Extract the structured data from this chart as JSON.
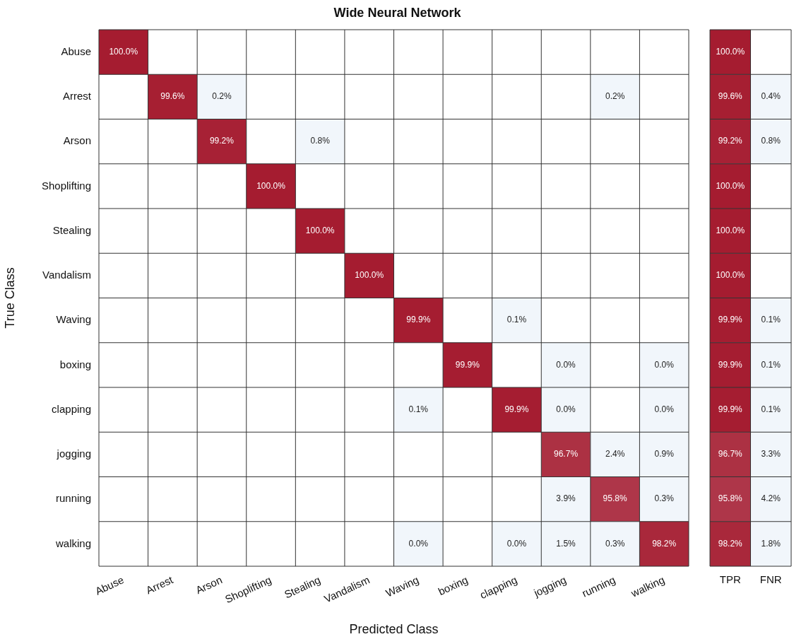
{
  "chart_data": [
    {
      "type": "heatmap",
      "title": "Wide Neural Network",
      "xlabel": "Predicted Class",
      "ylabel": "True Class",
      "data_labels": true,
      "categories": [
        "Abuse",
        "Arrest",
        "Arson",
        "Shoplifting",
        "Stealing",
        "Vandalism",
        "Waving",
        "boxing",
        "clapping",
        "jogging",
        "running",
        "walking"
      ],
      "y_categories": [
        "Abuse",
        "Arrest",
        "Arson",
        "Shoplifting",
        "Stealing",
        "Vandalism",
        "Waving",
        "boxing",
        "clapping",
        "jogging",
        "running",
        "walking"
      ],
      "cells": [
        [
          100.0,
          null,
          null,
          null,
          null,
          null,
          null,
          null,
          null,
          null,
          null,
          null
        ],
        [
          null,
          99.6,
          0.2,
          null,
          null,
          null,
          null,
          null,
          null,
          null,
          0.2,
          null
        ],
        [
          null,
          null,
          99.2,
          null,
          0.8,
          null,
          null,
          null,
          null,
          null,
          null,
          null
        ],
        [
          null,
          null,
          null,
          100.0,
          null,
          null,
          null,
          null,
          null,
          null,
          null,
          null
        ],
        [
          null,
          null,
          null,
          null,
          100.0,
          null,
          null,
          null,
          null,
          null,
          null,
          null
        ],
        [
          null,
          null,
          null,
          null,
          null,
          100.0,
          null,
          null,
          null,
          null,
          null,
          null
        ],
        [
          null,
          null,
          null,
          null,
          null,
          null,
          99.9,
          null,
          0.1,
          null,
          null,
          null
        ],
        [
          null,
          null,
          null,
          null,
          null,
          null,
          null,
          99.9,
          null,
          0.0,
          null,
          0.0
        ],
        [
          null,
          null,
          null,
          null,
          null,
          null,
          0.1,
          null,
          99.9,
          0.0,
          null,
          0.0
        ],
        [
          null,
          null,
          null,
          null,
          null,
          null,
          null,
          null,
          null,
          96.7,
          2.4,
          0.9
        ],
        [
          null,
          null,
          null,
          null,
          null,
          null,
          null,
          null,
          null,
          3.9,
          95.8,
          0.3
        ],
        [
          null,
          null,
          null,
          null,
          null,
          null,
          0.0,
          null,
          0.0,
          1.5,
          0.3,
          98.2
        ]
      ],
      "cell_labels": [
        [
          "100.0%",
          null,
          null,
          null,
          null,
          null,
          null,
          null,
          null,
          null,
          null,
          null
        ],
        [
          null,
          "99.6%",
          "0.2%",
          null,
          null,
          null,
          null,
          null,
          null,
          null,
          "0.2%",
          null
        ],
        [
          null,
          null,
          "99.2%",
          null,
          "0.8%",
          null,
          null,
          null,
          null,
          null,
          null,
          null
        ],
        [
          null,
          null,
          null,
          "100.0%",
          null,
          null,
          null,
          null,
          null,
          null,
          null,
          null
        ],
        [
          null,
          null,
          null,
          null,
          "100.0%",
          null,
          null,
          null,
          null,
          null,
          null,
          null
        ],
        [
          null,
          null,
          null,
          null,
          null,
          "100.0%",
          null,
          null,
          null,
          null,
          null,
          null
        ],
        [
          null,
          null,
          null,
          null,
          null,
          null,
          "99.9%",
          null,
          "0.1%",
          null,
          null,
          null
        ],
        [
          null,
          null,
          null,
          null,
          null,
          null,
          null,
          "99.9%",
          null,
          "0.0%",
          null,
          "0.0%"
        ],
        [
          null,
          null,
          null,
          null,
          null,
          null,
          "0.1%",
          null,
          "99.9%",
          "0.0%",
          null,
          "0.0%"
        ],
        [
          null,
          null,
          null,
          null,
          null,
          null,
          null,
          null,
          null,
          "96.7%",
          "2.4%",
          "0.9%"
        ],
        [
          null,
          null,
          null,
          null,
          null,
          null,
          null,
          null,
          null,
          "3.9%",
          "95.8%",
          "0.3%"
        ],
        [
          null,
          null,
          null,
          null,
          null,
          null,
          "0.0%",
          null,
          "0.0%",
          "1.5%",
          "0.3%",
          "98.2%"
        ]
      ]
    },
    {
      "type": "heatmap",
      "data_labels": true,
      "tick_labels": "x",
      "categories": [
        "TPR",
        "FNR"
      ],
      "y_categories": [
        null,
        null,
        null,
        null,
        null,
        null,
        null,
        null,
        null,
        null,
        null,
        null
      ],
      "cells": [
        [
          100.0,
          null
        ],
        [
          99.6,
          0.4
        ],
        [
          99.2,
          0.8
        ],
        [
          100.0,
          null
        ],
        [
          100.0,
          null
        ],
        [
          100.0,
          null
        ],
        [
          99.9,
          0.1
        ],
        [
          99.9,
          0.1
        ],
        [
          99.9,
          0.1
        ],
        [
          96.7,
          3.3
        ],
        [
          95.8,
          4.2
        ],
        [
          98.2,
          1.8
        ]
      ],
      "cell_labels": [
        [
          "100.0%",
          null
        ],
        [
          "99.6%",
          "0.4%"
        ],
        [
          "99.2%",
          "0.8%"
        ],
        [
          "100.0%",
          null
        ],
        [
          "100.0%",
          null
        ],
        [
          "100.0%",
          null
        ],
        [
          "99.9%",
          "0.1%"
        ],
        [
          "99.9%",
          "0.1%"
        ],
        [
          "99.9%",
          "0.1%"
        ],
        [
          "96.7%",
          "3.3%"
        ],
        [
          "95.8%",
          "4.2%"
        ],
        [
          "98.2%",
          "1.8%"
        ]
      ]
    }
  ]
}
